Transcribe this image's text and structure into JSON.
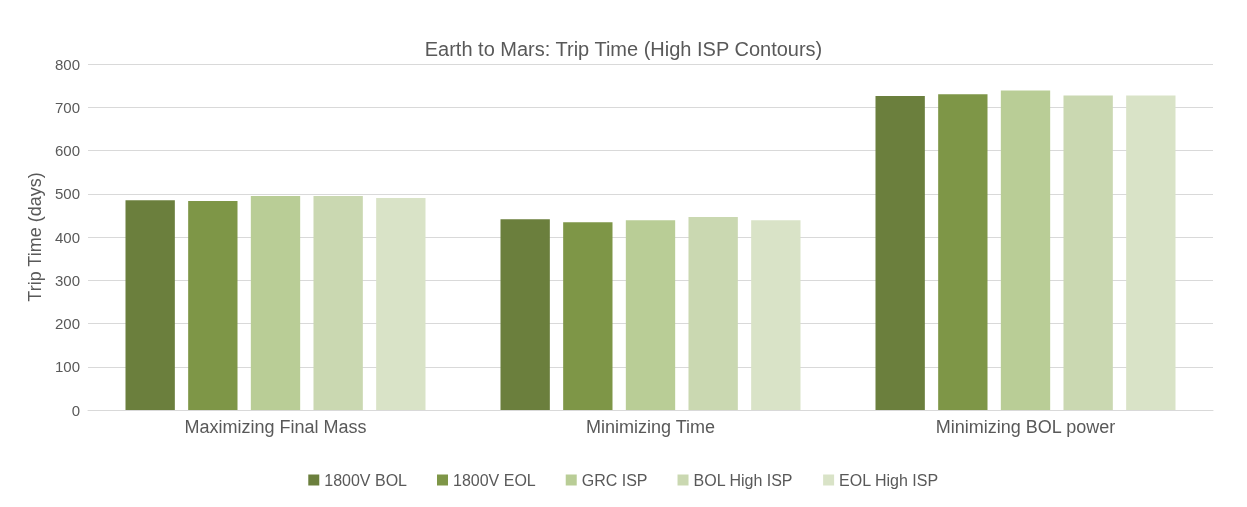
{
  "chart_data": {
    "type": "bar",
    "title": "Earth to Mars: Trip Time (High ISP Contours)",
    "ylabel": "Trip Time (days)",
    "categories": [
      "Maximizing Final Mass",
      "Minimizing Time",
      "Minimizing BOL power"
    ],
    "series": [
      {
        "name": "1800V BOL",
        "color": "#6b7f3d",
        "values": [
          485,
          441,
          726
        ]
      },
      {
        "name": "1800V EOL",
        "color": "#7e9647",
        "values": [
          483,
          434,
          730
        ]
      },
      {
        "name": "GRC ISP",
        "color": "#b9cd96",
        "values": [
          495,
          439,
          739
        ]
      },
      {
        "name": "BOL High ISP",
        "color": "#cad8b1",
        "values": [
          495,
          446,
          727
        ]
      },
      {
        "name": "EOL High ISP",
        "color": "#d9e3c7",
        "values": [
          490,
          439,
          727
        ]
      }
    ],
    "ylim": [
      0,
      800
    ],
    "yticks": [
      0,
      100,
      200,
      300,
      400,
      500,
      600,
      700,
      800
    ],
    "grid": "y",
    "legend": "bottom"
  }
}
